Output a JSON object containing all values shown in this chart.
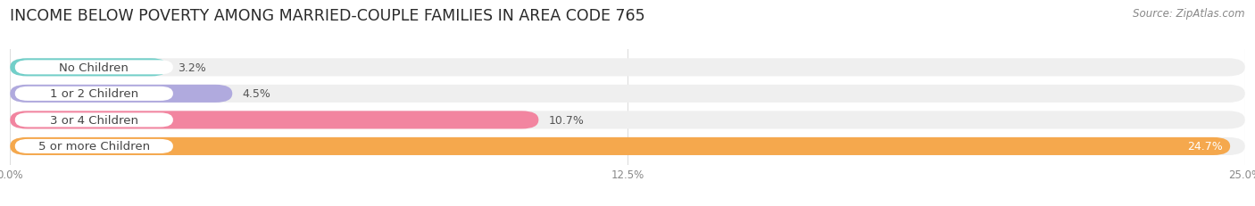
{
  "title": "INCOME BELOW POVERTY AMONG MARRIED-COUPLE FAMILIES IN AREA CODE 765",
  "source": "Source: ZipAtlas.com",
  "categories": [
    "No Children",
    "1 or 2 Children",
    "3 or 4 Children",
    "5 or more Children"
  ],
  "values": [
    3.2,
    4.5,
    10.7,
    24.7
  ],
  "bar_colors": [
    "#72cfc9",
    "#b0aade",
    "#f285a0",
    "#f5a84d"
  ],
  "bar_bg_color": "#efefef",
  "xlim": [
    0,
    25.0
  ],
  "xticks": [
    0.0,
    12.5,
    25.0
  ],
  "xticklabels": [
    "0.0%",
    "12.5%",
    "25.0%"
  ],
  "title_fontsize": 12.5,
  "label_fontsize": 9.5,
  "value_fontsize": 9,
  "source_fontsize": 8.5,
  "bar_height": 0.68,
  "background_color": "#ffffff",
  "label_color": "#444444",
  "value_color_dark": "#555555",
  "value_color_light": "#ffffff",
  "grid_color": "#dddddd",
  "tick_color": "#888888"
}
